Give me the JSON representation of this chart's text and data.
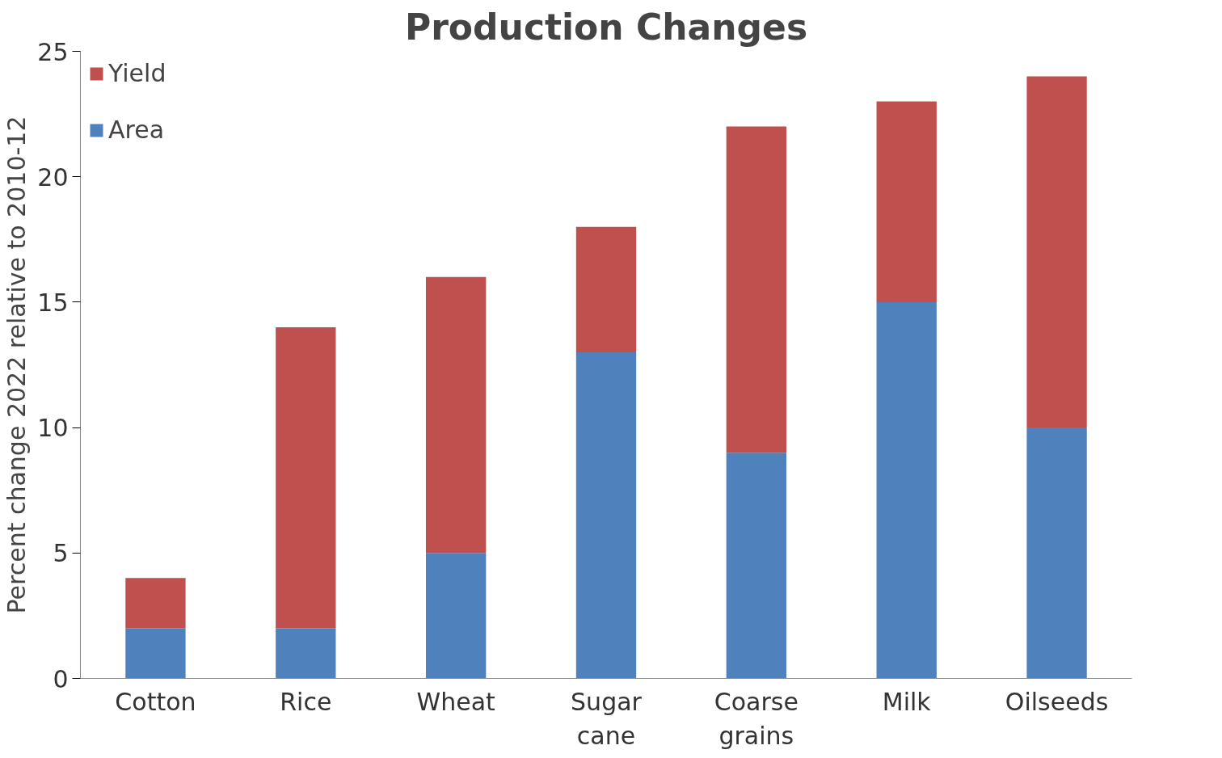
{
  "chart_data": {
    "type": "bar",
    "title": "Production Changes",
    "ylabel": "Percent change 2022 relative to 2010-12",
    "categories": [
      "Cotton",
      "Rice",
      "Wheat",
      "Sugar cane",
      "Coarse grains",
      "Milk",
      "Oilseeds"
    ],
    "stacked": true,
    "series": [
      {
        "name": "Area",
        "color": "#4f81bd",
        "values": [
          2,
          2,
          5,
          13,
          9,
          15,
          10
        ]
      },
      {
        "name": "Yield",
        "color": "#c0504d",
        "values": [
          2,
          12,
          11,
          5,
          13,
          8,
          14
        ]
      }
    ],
    "ylim": [
      0,
      25
    ],
    "yticks": [
      0,
      5,
      10,
      15,
      20,
      25
    ],
    "grid": false,
    "legend": "top left"
  }
}
